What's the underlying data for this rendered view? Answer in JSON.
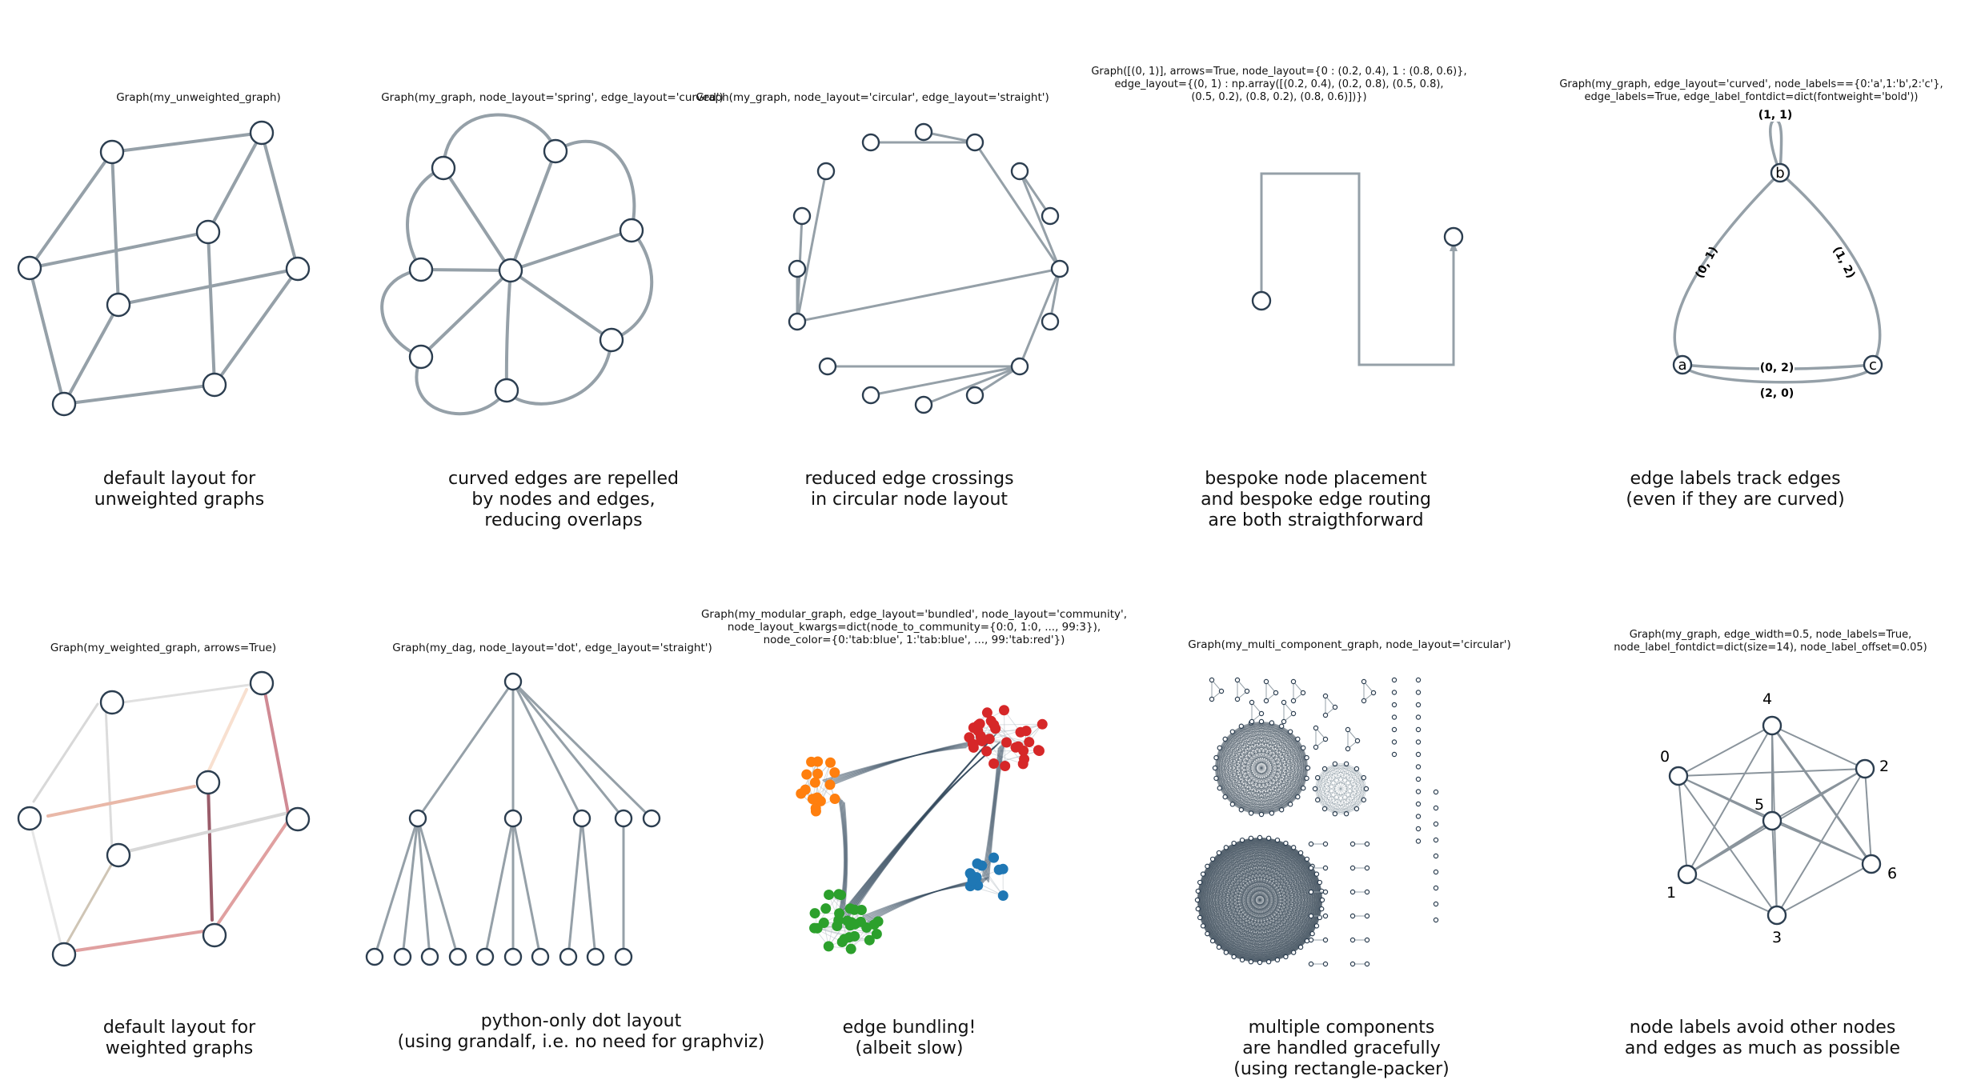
{
  "panels": [
    {
      "code": "Graph(my_unweighted_graph)",
      "caption": "default layout for\nunweighted graphs"
    },
    {
      "code": "Graph(my_graph, node_layout='spring', edge_layout='curved')",
      "caption": "curved edges are repelled\nby nodes and edges,\nreducing overlaps"
    },
    {
      "code": "Graph(my_graph, node_layout='circular', edge_layout='straight')",
      "caption": "reduced edge crossings\nin circular node layout"
    },
    {
      "code": "Graph([(0, 1)], arrows=True, node_layout={0 : (0.2, 0.4), 1 : (0.8, 0.6)},\nedge_layout={(0, 1) : np.array([(0.2, 0.4), (0.2, 0.8), (0.5, 0.8),\n(0.5, 0.2), (0.8, 0.2), (0.8, 0.6)])})",
      "caption": "bespoke node placement\nand bespoke edge routing\nare both straigthforward"
    },
    {
      "code": "Graph(my_graph, edge_layout='curved', node_labels=={0:'a',1:'b',2:'c'},\nedge_labels=True, edge_label_fontdict=dict(fontweight='bold'))",
      "caption": "edge labels track edges\n(even if they are curved)"
    },
    {
      "code": "Graph(my_weighted_graph, arrows=True)",
      "caption": "default layout for\nweighted graphs"
    },
    {
      "code": "Graph(my_dag, node_layout='dot', edge_layout='straight')",
      "caption": "python-only dot layout\n(using grandalf, i.e. no need for graphviz)"
    },
    {
      "code": "Graph(my_modular_graph, edge_layout='bundled', node_layout='community',\nnode_layout_kwargs=dict(node_to_community={0:0, 1:0, ..., 99:3}),\nnode_color={0:'tab:blue', 1:'tab:blue', ..., 99:'tab:red'})",
      "caption": "edge bundling!\n(albeit slow)"
    },
    {
      "code": "Graph(my_multi_component_graph, node_layout='circular')",
      "caption": "multiple components\nare handled gracefully\n(using rectangle-packer)"
    },
    {
      "code": "Graph(my_graph, edge_width=0.5, node_labels=True,\nnode_label_fontdict=dict(size=14), node_label_offset=0.05)",
      "caption": "node labels avoid other nodes\nand edges as much as possible"
    }
  ],
  "node_labels_p5": [
    "a",
    "b",
    "c"
  ],
  "edge_labels_p5": [
    "(1, 1)",
    "(0, 1)",
    "(1, 2)",
    "(0, 2)",
    "(2, 0)"
  ],
  "node_labels_p10": [
    "0",
    "1",
    "2",
    "3",
    "4",
    "5",
    "6"
  ],
  "colors": {
    "node_edge": "#2c3e50",
    "edge_gray": "#95a0a8",
    "tab_blue": "#1f77b4",
    "tab_orange": "#ff7f0e",
    "tab_green": "#2ca02c",
    "tab_red": "#d62728"
  }
}
